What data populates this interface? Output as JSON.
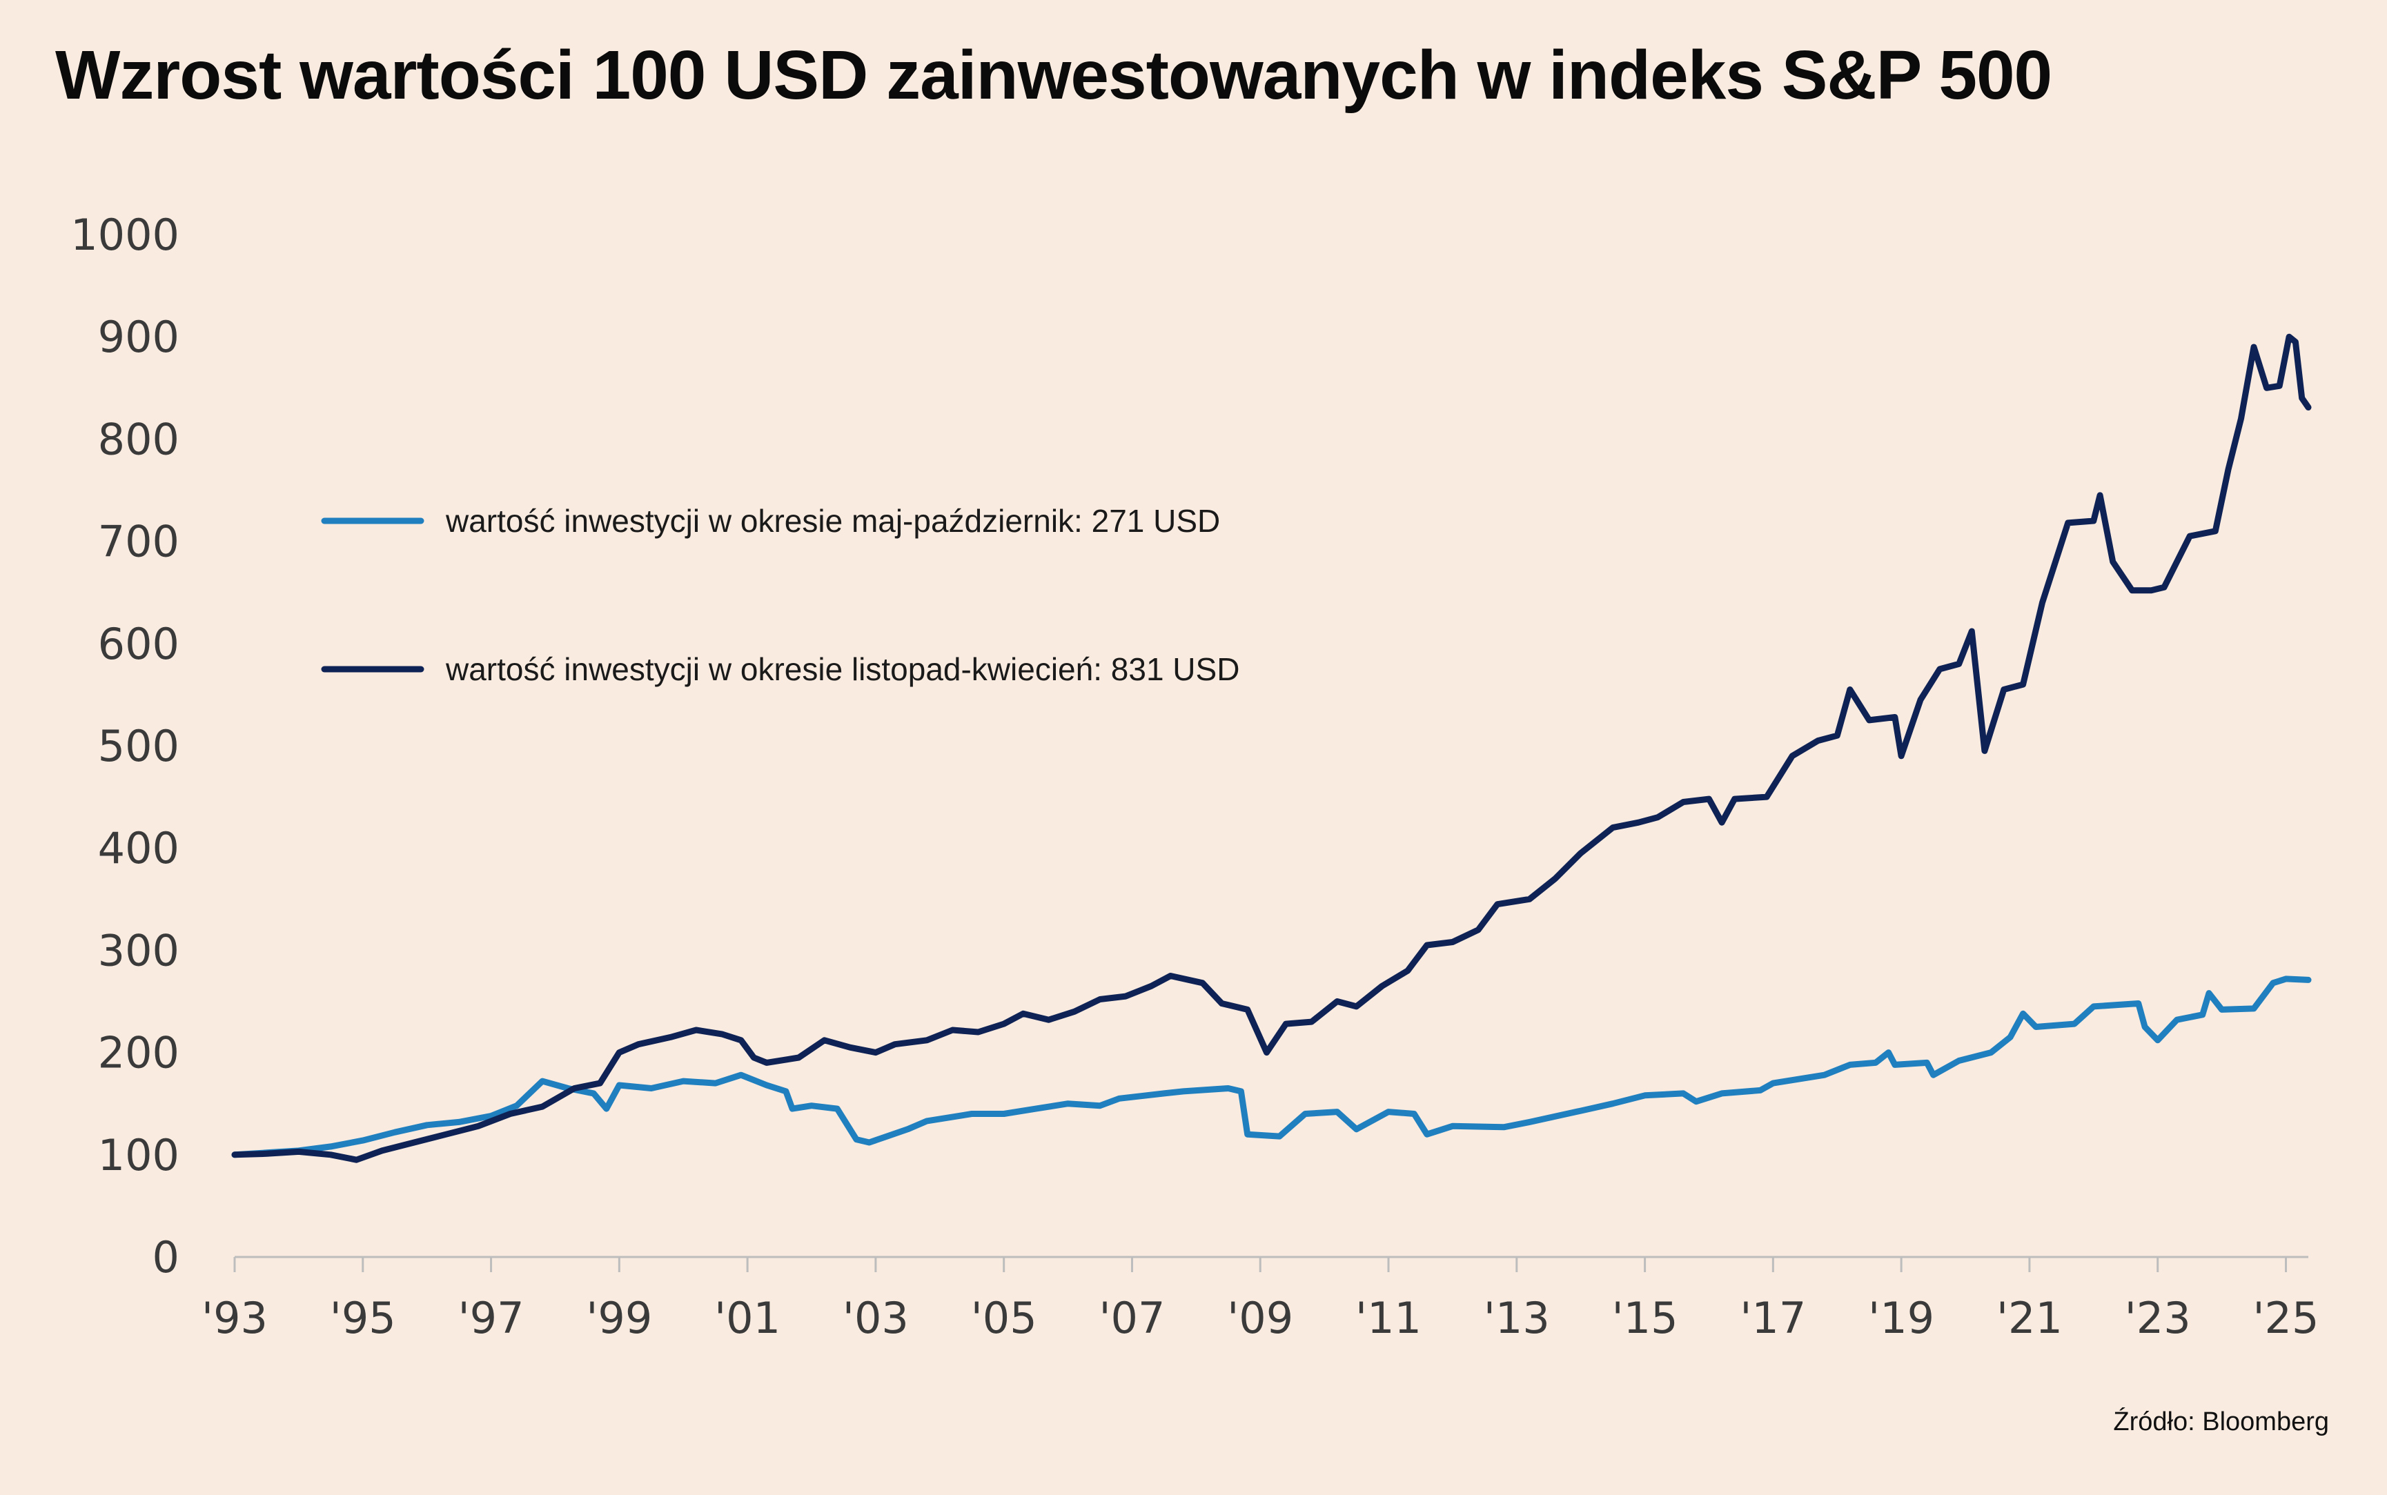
{
  "title": "Wzrost wartości 100 USD zainwestowanych w indeks S&P 500",
  "source": "Źródło: Bloomberg",
  "colors": {
    "background": "#f9ebdf",
    "may_oct": "#1f7fbf",
    "nov_apr": "#0e2256"
  },
  "chart_data": {
    "type": "line",
    "title": "Wzrost wartości 100 USD zainwestowanych w indeks S&P 500",
    "xlabel": "",
    "ylabel": "",
    "xlim": [
      1993,
      2025.35
    ],
    "ylim": [
      0,
      1000
    ],
    "y_ticks": [
      0,
      100,
      200,
      300,
      400,
      500,
      600,
      700,
      800,
      900,
      1000
    ],
    "y_tick_labels": [
      "0",
      "100",
      "200",
      "300",
      "400",
      "500",
      "600",
      "700",
      "800",
      "900",
      "1000"
    ],
    "x_ticks": [
      1993,
      1995,
      1997,
      1999,
      2001,
      2003,
      2005,
      2007,
      2009,
      2011,
      2013,
      2015,
      2017,
      2019,
      2021,
      2023,
      2025
    ],
    "x_tick_labels": [
      "'93",
      "'95",
      "'97",
      "'99",
      "'01",
      "'03",
      "'05",
      "'07",
      "'09",
      "'11",
      "'13",
      "'15",
      "'17",
      "'19",
      "'21",
      "'23",
      "'25"
    ],
    "grid": false,
    "legend_position": "upper-left",
    "series": [
      {
        "name": "wartość inwestycji w okresie maj-październik: 271 USD",
        "color": "#1f7fbf",
        "points": [
          [
            1993.0,
            100
          ],
          [
            1993.5,
            102
          ],
          [
            1994.0,
            104
          ],
          [
            1994.5,
            108
          ],
          [
            1995.0,
            114
          ],
          [
            1995.5,
            122
          ],
          [
            1996.0,
            129
          ],
          [
            1996.5,
            132
          ],
          [
            1997.0,
            138
          ],
          [
            1997.4,
            148
          ],
          [
            1997.8,
            172
          ],
          [
            1998.2,
            165
          ],
          [
            1998.6,
            160
          ],
          [
            1998.8,
            145
          ],
          [
            1999.0,
            168
          ],
          [
            1999.5,
            165
          ],
          [
            2000.0,
            172
          ],
          [
            2000.5,
            170
          ],
          [
            2000.9,
            178
          ],
          [
            2001.3,
            168
          ],
          [
            2001.6,
            162
          ],
          [
            2001.7,
            145
          ],
          [
            2002.0,
            148
          ],
          [
            2002.4,
            145
          ],
          [
            2002.7,
            115
          ],
          [
            2002.9,
            112
          ],
          [
            2003.5,
            125
          ],
          [
            2003.8,
            133
          ],
          [
            2004.5,
            140
          ],
          [
            2005.0,
            140
          ],
          [
            2005.5,
            145
          ],
          [
            2006.0,
            150
          ],
          [
            2006.5,
            148
          ],
          [
            2006.8,
            155
          ],
          [
            2007.5,
            160
          ],
          [
            2007.8,
            162
          ],
          [
            2008.5,
            165
          ],
          [
            2008.7,
            162
          ],
          [
            2008.8,
            120
          ],
          [
            2009.3,
            118
          ],
          [
            2009.7,
            140
          ],
          [
            2010.2,
            142
          ],
          [
            2010.5,
            125
          ],
          [
            2011.0,
            142
          ],
          [
            2011.4,
            140
          ],
          [
            2011.6,
            120
          ],
          [
            2012.0,
            128
          ],
          [
            2012.8,
            127
          ],
          [
            2013.2,
            132
          ],
          [
            2014.0,
            143
          ],
          [
            2014.5,
            150
          ],
          [
            2015.0,
            158
          ],
          [
            2015.6,
            160
          ],
          [
            2015.8,
            152
          ],
          [
            2016.2,
            160
          ],
          [
            2016.8,
            163
          ],
          [
            2017.0,
            170
          ],
          [
            2017.8,
            178
          ],
          [
            2018.2,
            188
          ],
          [
            2018.6,
            190
          ],
          [
            2018.8,
            200
          ],
          [
            2018.9,
            188
          ],
          [
            2019.4,
            190
          ],
          [
            2019.5,
            178
          ],
          [
            2019.9,
            192
          ],
          [
            2020.4,
            200
          ],
          [
            2020.7,
            215
          ],
          [
            2020.9,
            238
          ],
          [
            2021.1,
            225
          ],
          [
            2021.7,
            228
          ],
          [
            2022.0,
            245
          ],
          [
            2022.7,
            248
          ],
          [
            2022.8,
            225
          ],
          [
            2023.0,
            212
          ],
          [
            2023.3,
            232
          ],
          [
            2023.7,
            237
          ],
          [
            2023.8,
            258
          ],
          [
            2024.0,
            242
          ],
          [
            2024.5,
            243
          ],
          [
            2024.8,
            268
          ],
          [
            2025.0,
            272
          ],
          [
            2025.35,
            271
          ]
        ]
      },
      {
        "name": "wartość inwestycji w okresie listopad-kwiecień: 831 USD",
        "color": "#0e2256",
        "points": [
          [
            1993.0,
            100
          ],
          [
            1993.5,
            101
          ],
          [
            1994.0,
            103
          ],
          [
            1994.5,
            100
          ],
          [
            1994.9,
            95
          ],
          [
            1995.3,
            104
          ],
          [
            1995.8,
            112
          ],
          [
            1996.3,
            120
          ],
          [
            1996.8,
            128
          ],
          [
            1997.3,
            140
          ],
          [
            1997.8,
            147
          ],
          [
            1998.3,
            165
          ],
          [
            1998.7,
            170
          ],
          [
            1999.0,
            200
          ],
          [
            1999.3,
            208
          ],
          [
            1999.8,
            215
          ],
          [
            2000.2,
            222
          ],
          [
            2000.6,
            218
          ],
          [
            2000.9,
            212
          ],
          [
            2001.1,
            195
          ],
          [
            2001.3,
            190
          ],
          [
            2001.8,
            195
          ],
          [
            2002.2,
            212
          ],
          [
            2002.6,
            205
          ],
          [
            2003.0,
            200
          ],
          [
            2003.3,
            208
          ],
          [
            2003.8,
            212
          ],
          [
            2004.2,
            222
          ],
          [
            2004.6,
            220
          ],
          [
            2005.0,
            228
          ],
          [
            2005.3,
            238
          ],
          [
            2005.7,
            232
          ],
          [
            2006.1,
            240
          ],
          [
            2006.5,
            252
          ],
          [
            2006.9,
            255
          ],
          [
            2007.3,
            265
          ],
          [
            2007.6,
            275
          ],
          [
            2008.1,
            268
          ],
          [
            2008.4,
            248
          ],
          [
            2008.8,
            242
          ],
          [
            2009.1,
            200
          ],
          [
            2009.4,
            228
          ],
          [
            2009.8,
            230
          ],
          [
            2010.2,
            250
          ],
          [
            2010.5,
            245
          ],
          [
            2010.9,
            265
          ],
          [
            2011.3,
            280
          ],
          [
            2011.6,
            305
          ],
          [
            2012.0,
            308
          ],
          [
            2012.4,
            320
          ],
          [
            2012.7,
            345
          ],
          [
            2013.2,
            350
          ],
          [
            2013.6,
            370
          ],
          [
            2014.0,
            395
          ],
          [
            2014.5,
            420
          ],
          [
            2014.9,
            425
          ],
          [
            2015.2,
            430
          ],
          [
            2015.6,
            445
          ],
          [
            2016.0,
            448
          ],
          [
            2016.2,
            425
          ],
          [
            2016.4,
            448
          ],
          [
            2016.9,
            450
          ],
          [
            2017.3,
            490
          ],
          [
            2017.7,
            505
          ],
          [
            2018.0,
            510
          ],
          [
            2018.2,
            555
          ],
          [
            2018.5,
            525
          ],
          [
            2018.9,
            528
          ],
          [
            2019.0,
            490
          ],
          [
            2019.3,
            545
          ],
          [
            2019.6,
            575
          ],
          [
            2019.9,
            580
          ],
          [
            2020.1,
            612
          ],
          [
            2020.3,
            495
          ],
          [
            2020.6,
            555
          ],
          [
            2020.9,
            560
          ],
          [
            2021.2,
            640
          ],
          [
            2021.6,
            718
          ],
          [
            2022.0,
            720
          ],
          [
            2022.1,
            745
          ],
          [
            2022.3,
            680
          ],
          [
            2022.6,
            652
          ],
          [
            2022.9,
            652
          ],
          [
            2023.1,
            655
          ],
          [
            2023.3,
            680
          ],
          [
            2023.5,
            705
          ],
          [
            2023.9,
            710
          ],
          [
            2024.1,
            770
          ],
          [
            2024.3,
            820
          ],
          [
            2024.5,
            890
          ],
          [
            2024.7,
            850
          ],
          [
            2024.9,
            852
          ],
          [
            2025.05,
            900
          ],
          [
            2025.15,
            895
          ],
          [
            2025.25,
            840
          ],
          [
            2025.35,
            831
          ]
        ]
      }
    ]
  }
}
